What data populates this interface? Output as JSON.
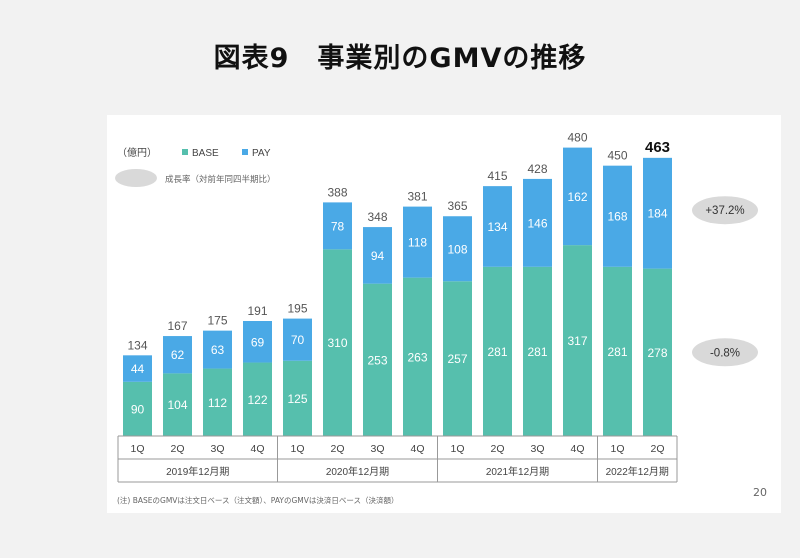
{
  "title": "図表9　事業別のGMVの推移",
  "page_number": "20",
  "note": "(注) BASEのGMVは注文日ベース（注文額）、PAYのGMVは決済日ベース（決済額）",
  "colors": {
    "base": "#56bfad",
    "pay": "#4aa9e6",
    "badge": "#d9d9d9",
    "text": "#444444"
  },
  "chart_data": {
    "type": "bar",
    "stacked": true,
    "unit_label": "（億円）",
    "categories": [
      "1Q",
      "2Q",
      "3Q",
      "4Q",
      "1Q",
      "2Q",
      "3Q",
      "4Q",
      "1Q",
      "2Q",
      "3Q",
      "4Q",
      "1Q",
      "2Q"
    ],
    "groups": [
      {
        "label": "2019年12月期",
        "count": 4
      },
      {
        "label": "2020年12月期",
        "count": 4
      },
      {
        "label": "2021年12月期",
        "count": 4
      },
      {
        "label": "2022年12月期",
        "count": 2
      }
    ],
    "series": [
      {
        "name": "BASE",
        "values": [
          90,
          104,
          112,
          122,
          125,
          310,
          253,
          263,
          257,
          281,
          281,
          317,
          281,
          278
        ]
      },
      {
        "name": "PAY",
        "values": [
          44,
          62,
          63,
          69,
          70,
          78,
          94,
          118,
          108,
          134,
          146,
          162,
          168,
          184
        ]
      }
    ],
    "totals": [
      134,
      167,
      175,
      191,
      195,
      388,
      348,
      381,
      365,
      415,
      428,
      480,
      450,
      463
    ],
    "highlight_last_total": true,
    "growth_legend": "成長率（対前年同四半期比）",
    "growth": {
      "pay": "+37.2%",
      "base": "-0.8%"
    },
    "ylim": [
      0,
      480
    ]
  }
}
